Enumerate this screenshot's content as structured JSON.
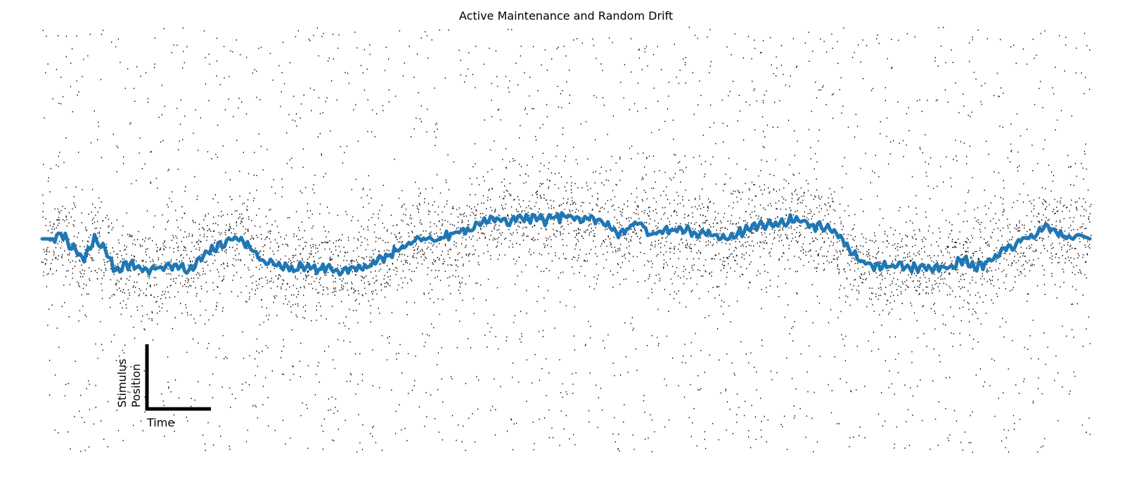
{
  "chart_data": {
    "type": "line",
    "title": "Active Maintenance and Random Drift",
    "xlabel": "",
    "ylabel": "",
    "xlim": [
      0,
      1000
    ],
    "ylim": [
      -1,
      1
    ],
    "grid": false,
    "axes_visible": false,
    "legend": "none",
    "scale_bar": {
      "x_label": "Time",
      "y_label_line1": "Stimulus",
      "y_label_line2": "Position"
    },
    "series": [
      {
        "style": "line",
        "color": "#1f77b4",
        "x": [
          0,
          10,
          20,
          30,
          40,
          50,
          60,
          70,
          80,
          90,
          100,
          110,
          120,
          130,
          140,
          150,
          160,
          170,
          180,
          190,
          200,
          210,
          220,
          230,
          240,
          250,
          260,
          270,
          280,
          290,
          300,
          310,
          320,
          330,
          340,
          350,
          360,
          370,
          380,
          390,
          400,
          410,
          420,
          430,
          440,
          450,
          460,
          470,
          480,
          490,
          500,
          510,
          520,
          530,
          540,
          550,
          560,
          570,
          580,
          590,
          600,
          610,
          620,
          630,
          640,
          650,
          660,
          670,
          680,
          690,
          700,
          710,
          720,
          730,
          740,
          750,
          760,
          770,
          780,
          790,
          800,
          810,
          820,
          830,
          840,
          850,
          860,
          870,
          880,
          890,
          900,
          910,
          920,
          930,
          940,
          950,
          960,
          970,
          980,
          990,
          1000
        ],
        "values": [
          0.0,
          0.0,
          0.02,
          -0.05,
          -0.1,
          0.0,
          -0.05,
          -0.15,
          -0.12,
          -0.13,
          -0.15,
          -0.14,
          -0.13,
          -0.12,
          -0.16,
          -0.1,
          -0.06,
          -0.03,
          0.0,
          0.0,
          -0.05,
          -0.1,
          -0.12,
          -0.13,
          -0.15,
          -0.13,
          -0.15,
          -0.14,
          -0.15,
          -0.14,
          -0.14,
          -0.13,
          -0.1,
          -0.08,
          -0.05,
          -0.02,
          0.0,
          0.0,
          0.0,
          0.02,
          0.04,
          0.05,
          0.08,
          0.1,
          0.08,
          0.09,
          0.1,
          0.1,
          0.09,
          0.1,
          0.11,
          0.09,
          0.1,
          0.09,
          0.06,
          0.03,
          0.05,
          0.08,
          0.02,
          0.04,
          0.04,
          0.05,
          0.03,
          0.02,
          0.02,
          0.0,
          0.02,
          0.04,
          0.06,
          0.07,
          0.07,
          0.08,
          0.1,
          0.07,
          0.06,
          0.05,
          0.02,
          -0.05,
          -0.1,
          -0.12,
          -0.13,
          -0.13,
          -0.12,
          -0.14,
          -0.13,
          -0.14,
          -0.13,
          -0.12,
          -0.1,
          -0.13,
          -0.12,
          -0.09,
          -0.05,
          -0.02,
          0.0,
          0.03,
          0.05,
          0.03,
          0.0,
          0.02,
          0.0
        ]
      },
      {
        "style": "raster",
        "color": "#000000",
        "description": "spike raster: neuron activity concentrated near the maintained stimulus position with sparse background firing"
      }
    ]
  }
}
